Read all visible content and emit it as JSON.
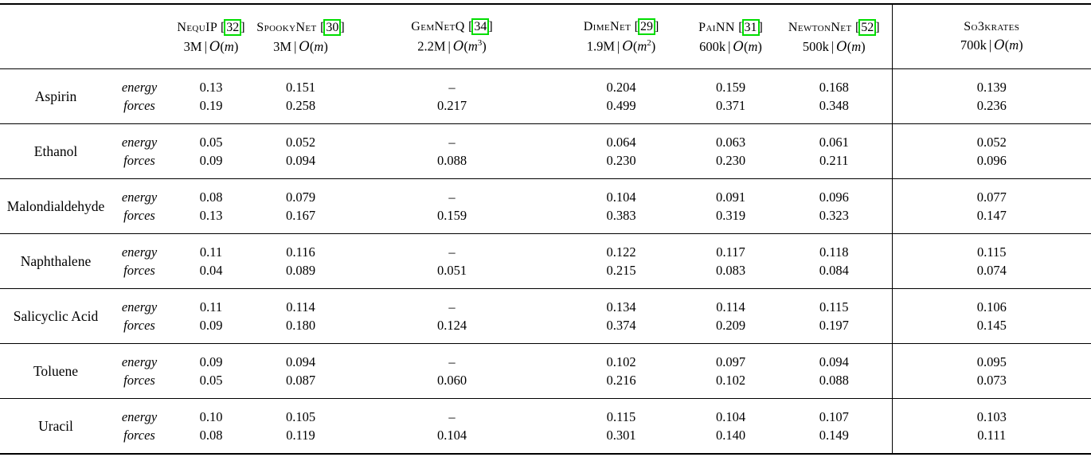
{
  "colors": {
    "cite_border": "#00dd00",
    "rule": "#000000",
    "background": "#ffffff"
  },
  "notation": {
    "separator": "|",
    "order_symbol": "O",
    "paren_open": "(",
    "paren_close": ")",
    "cite_open": "[",
    "cite_close": "]"
  },
  "table": {
    "columns": [
      {
        "name": "NequIP",
        "cite": "32",
        "params": "3M",
        "order_base": "m",
        "order_exp": "",
        "divider": false
      },
      {
        "name": "SpookyNet",
        "cite": "30",
        "params": "3M",
        "order_base": "m",
        "order_exp": "",
        "divider": false
      },
      {
        "name": "GemNetQ",
        "cite": "34",
        "params": "2.2M",
        "order_base": "m",
        "order_exp": "3",
        "divider": false
      },
      {
        "name": "DimeNet",
        "cite": "29",
        "params": "1.9M",
        "order_base": "m",
        "order_exp": "2",
        "divider": false
      },
      {
        "name": "PaiNN",
        "cite": "31",
        "params": "600k",
        "order_base": "m",
        "order_exp": "",
        "divider": false
      },
      {
        "name": "NewtonNet",
        "cite": "52",
        "params": "500k",
        "order_base": "m",
        "order_exp": "",
        "divider": false
      },
      {
        "name": "So3krates",
        "cite": "",
        "params": "700k",
        "order_base": "m",
        "order_exp": "",
        "divider": true
      }
    ],
    "row_labels": [
      "energy",
      "forces"
    ],
    "rows": [
      {
        "molecule": "Aspirin",
        "energy": [
          "0.13",
          "0.151",
          "–",
          "0.204",
          "0.159",
          "0.168",
          "0.139"
        ],
        "forces": [
          "0.19",
          "0.258",
          "0.217",
          "0.499",
          "0.371",
          "0.348",
          "0.236"
        ]
      },
      {
        "molecule": "Ethanol",
        "energy": [
          "0.05",
          "0.052",
          "–",
          "0.064",
          "0.063",
          "0.061",
          "0.052"
        ],
        "forces": [
          "0.09",
          "0.094",
          "0.088",
          "0.230",
          "0.230",
          "0.211",
          "0.096"
        ]
      },
      {
        "molecule": "Malondialdehyde",
        "energy": [
          "0.08",
          "0.079",
          "–",
          "0.104",
          "0.091",
          "0.096",
          "0.077"
        ],
        "forces": [
          "0.13",
          "0.167",
          "0.159",
          "0.383",
          "0.319",
          "0.323",
          "0.147"
        ]
      },
      {
        "molecule": "Naphthalene",
        "energy": [
          "0.11",
          "0.116",
          "–",
          "0.122",
          "0.117",
          "0.118",
          "0.115"
        ],
        "forces": [
          "0.04",
          "0.089",
          "0.051",
          "0.215",
          "0.083",
          "0.084",
          "0.074"
        ]
      },
      {
        "molecule": "Salicyclic Acid",
        "energy": [
          "0.11",
          "0.114",
          "–",
          "0.134",
          "0.114",
          "0.115",
          "0.106"
        ],
        "forces": [
          "0.09",
          "0.180",
          "0.124",
          "0.374",
          "0.209",
          "0.197",
          "0.145"
        ]
      },
      {
        "molecule": "Toluene",
        "energy": [
          "0.09",
          "0.094",
          "–",
          "0.102",
          "0.097",
          "0.094",
          "0.095"
        ],
        "forces": [
          "0.05",
          "0.087",
          "0.060",
          "0.216",
          "0.102",
          "0.088",
          "0.073"
        ]
      },
      {
        "molecule": "Uracil",
        "energy": [
          "0.10",
          "0.105",
          "–",
          "0.115",
          "0.104",
          "0.107",
          "0.103"
        ],
        "forces": [
          "0.08",
          "0.119",
          "0.104",
          "0.301",
          "0.140",
          "0.149",
          "0.111"
        ]
      }
    ]
  }
}
